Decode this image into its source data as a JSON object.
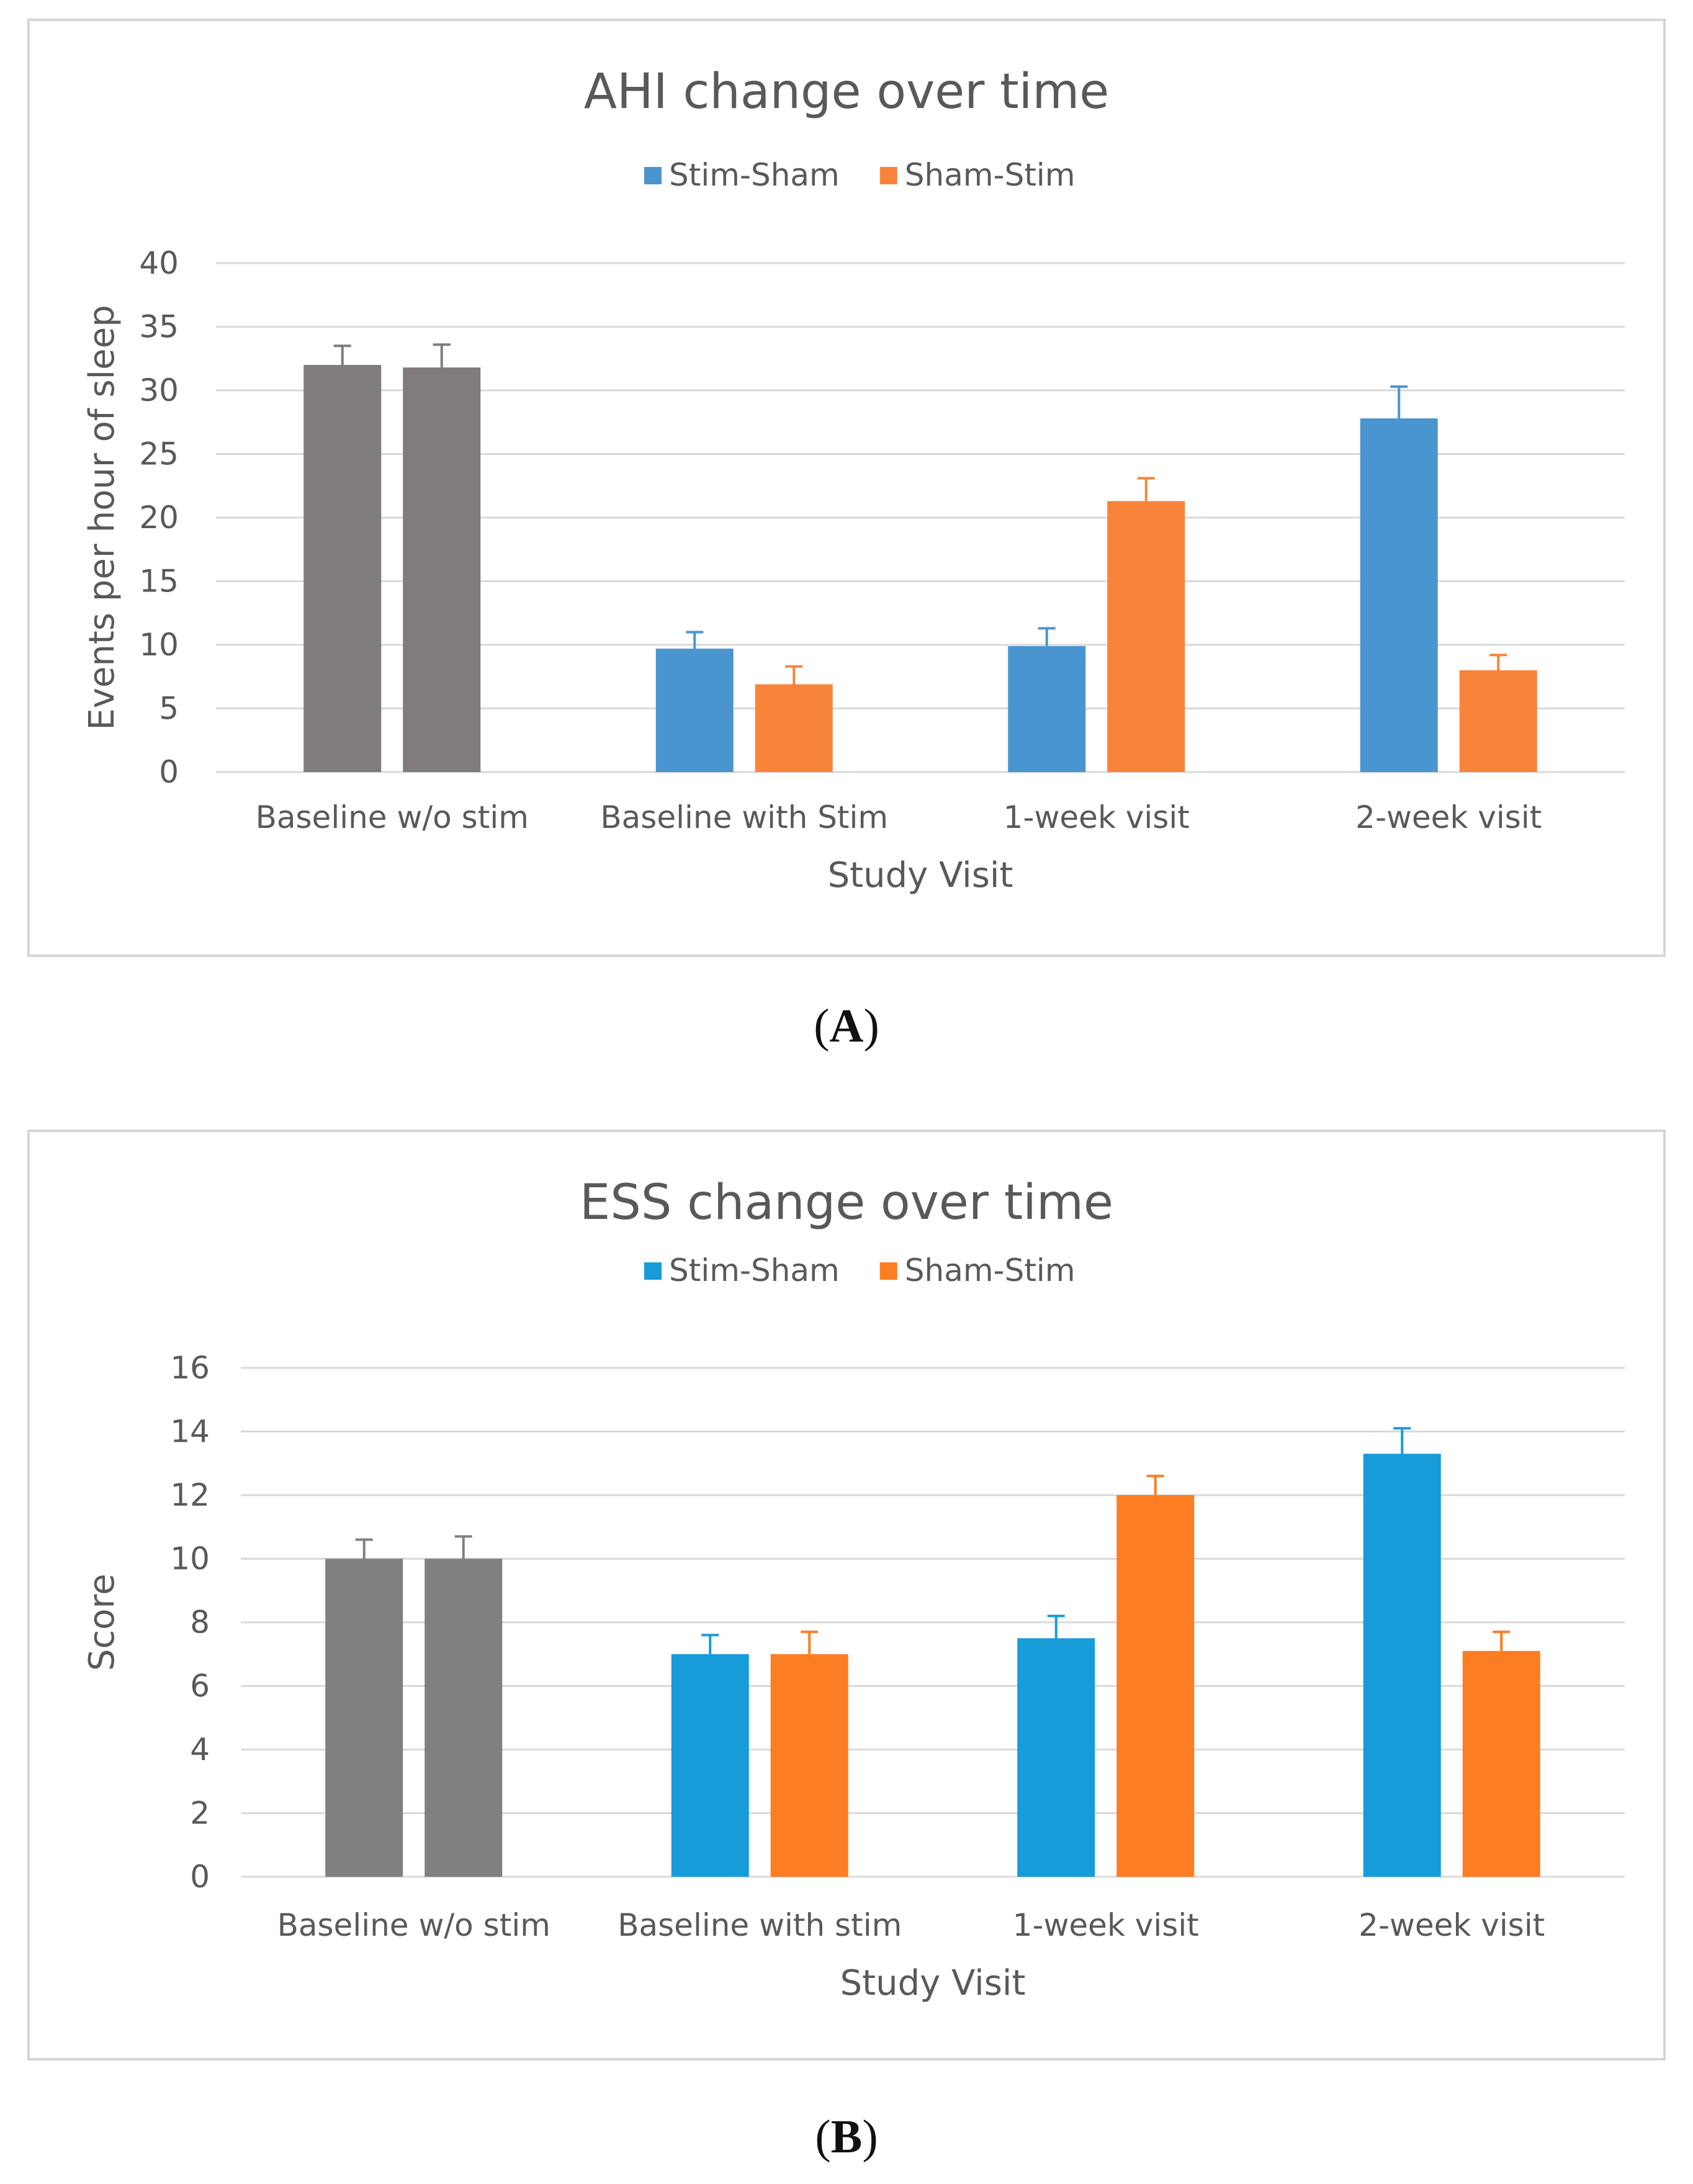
{
  "chart_data": [
    {
      "id": "A",
      "panel_label": "A",
      "type": "bar",
      "title": "AHI change over time",
      "xlabel": "Study Visit",
      "ylabel": "Events per hour of sleep",
      "ylim": [
        0,
        40
      ],
      "yticks": [
        0,
        5,
        10,
        15,
        20,
        25,
        30,
        35,
        40
      ],
      "grid": true,
      "legend_position": "top-center",
      "categories": [
        "Baseline w/o stim",
        "Baseline with Stim",
        "1-week visit",
        "2-week visit"
      ],
      "baseline_color": "#7f7b7e",
      "series": [
        {
          "name": "Stim-Sham",
          "color": "#4a95cf",
          "values": [
            32,
            9.7,
            9.9,
            27.8
          ],
          "errors": [
            1.5,
            1.3,
            1.4,
            2.5
          ]
        },
        {
          "name": "Sham-Stim",
          "color": "#f8843a",
          "values": [
            31.8,
            6.9,
            21.3,
            8.0
          ],
          "errors": [
            1.8,
            1.4,
            1.8,
            1.2
          ]
        }
      ]
    },
    {
      "id": "B",
      "panel_label": "B",
      "type": "bar",
      "title": "ESS change over time",
      "xlabel": "Study Visit",
      "ylabel": "Score",
      "ylim": [
        0,
        16
      ],
      "yticks": [
        0,
        2,
        4,
        6,
        8,
        10,
        12,
        14,
        16
      ],
      "grid": true,
      "legend_position": "top-center",
      "categories": [
        "Baseline w/o stim",
        "Baseline with stim",
        "1-week visit",
        "2-week visit"
      ],
      "baseline_color": "#808080",
      "series": [
        {
          "name": "Stim-Sham",
          "color": "#189bd9",
          "values": [
            10,
            7,
            7.5,
            13.3
          ],
          "errors": [
            0.6,
            0.6,
            0.7,
            0.8
          ]
        },
        {
          "name": "Sham-Stim",
          "color": "#fc7d22",
          "values": [
            10,
            7,
            12,
            7.1
          ],
          "errors": [
            0.7,
            0.7,
            0.6,
            0.6
          ]
        }
      ]
    }
  ]
}
